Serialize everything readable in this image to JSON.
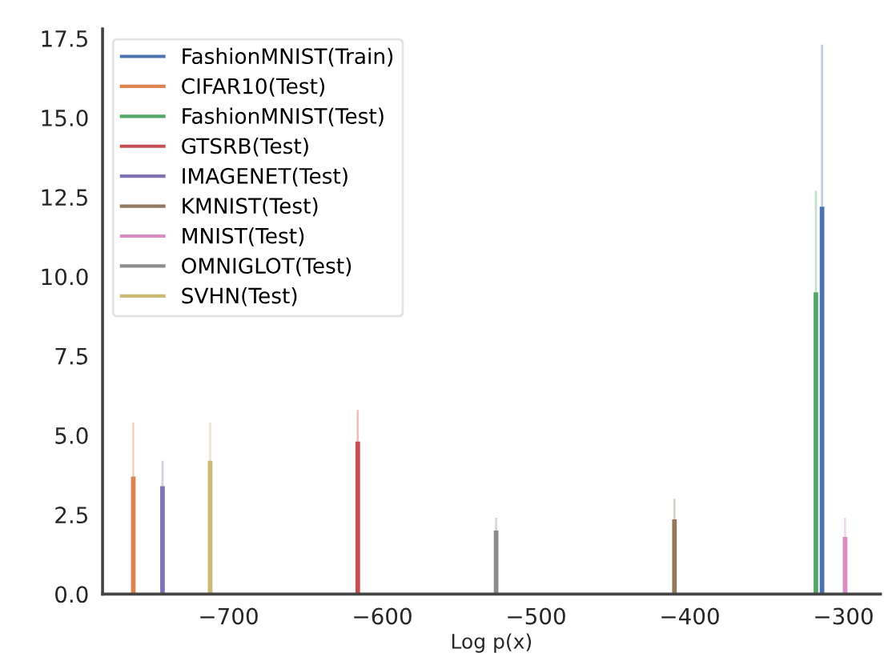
{
  "chart_data": {
    "type": "bar",
    "xlabel": "Log p(x)",
    "xlim": [
      -782,
      -276
    ],
    "xticks": [
      {
        "value": -700,
        "label": "−700"
      },
      {
        "value": -600,
        "label": "−600"
      },
      {
        "value": -500,
        "label": "−500"
      },
      {
        "value": -400,
        "label": "−400"
      },
      {
        "value": -300,
        "label": "−300"
      }
    ],
    "ylim": [
      0,
      17.8
    ],
    "yticks": [
      {
        "value": 0,
        "label": "0.0"
      },
      2.5,
      {
        "value": 5,
        "label": "5.0"
      },
      7.5,
      {
        "value": 10,
        "label": "10.0"
      },
      12.5,
      {
        "value": 15,
        "label": "15.0"
      },
      17.5
    ],
    "legend": "top left",
    "grid": false,
    "series": [
      {
        "name": "FashionMNIST(Train)",
        "color": "#4c72b0",
        "x": [
          -314
        ],
        "values": [
          12.2
        ],
        "errors": [
          [
            12.2,
            17.3
          ]
        ]
      },
      {
        "name": "CIFAR10(Test)",
        "color": "#dd8452",
        "x": [
          -762
        ],
        "values": [
          3.7
        ],
        "errors": [
          [
            3.7,
            5.4
          ]
        ]
      },
      {
        "name": "FashionMNIST(Test)",
        "color": "#55a868",
        "x": [
          -318
        ],
        "values": [
          9.5
        ],
        "errors": [
          [
            9.5,
            12.7
          ]
        ]
      },
      {
        "name": "GTSRB(Test)",
        "color": "#c44e52",
        "x": [
          -616
        ],
        "values": [
          4.8
        ],
        "errors": [
          [
            4.8,
            5.8
          ]
        ]
      },
      {
        "name": "IMAGENET(Test)",
        "color": "#8172b3",
        "x": [
          -743
        ],
        "values": [
          3.4
        ],
        "errors": [
          [
            3.4,
            4.2
          ]
        ]
      },
      {
        "name": "KMNIST(Test)",
        "color": "#937860",
        "x": [
          -410
        ],
        "values": [
          2.35
        ],
        "errors": [
          [
            2.35,
            3.0
          ]
        ]
      },
      {
        "name": "MNIST(Test)",
        "color": "#da8bc3",
        "x": [
          -299
        ],
        "values": [
          1.8
        ],
        "errors": [
          [
            1.8,
            2.4
          ]
        ]
      },
      {
        "name": "OMNIGLOT(Test)",
        "color": "#8c8c8c",
        "x": [
          -526
        ],
        "values": [
          2.0
        ],
        "errors": [
          [
            2.0,
            2.4
          ]
        ]
      },
      {
        "name": "SVHN(Test)",
        "color": "#ccb974",
        "x": [
          -712
        ],
        "values": [
          4.2
        ],
        "errors": [
          [
            4.2,
            5.4
          ]
        ]
      }
    ]
  }
}
